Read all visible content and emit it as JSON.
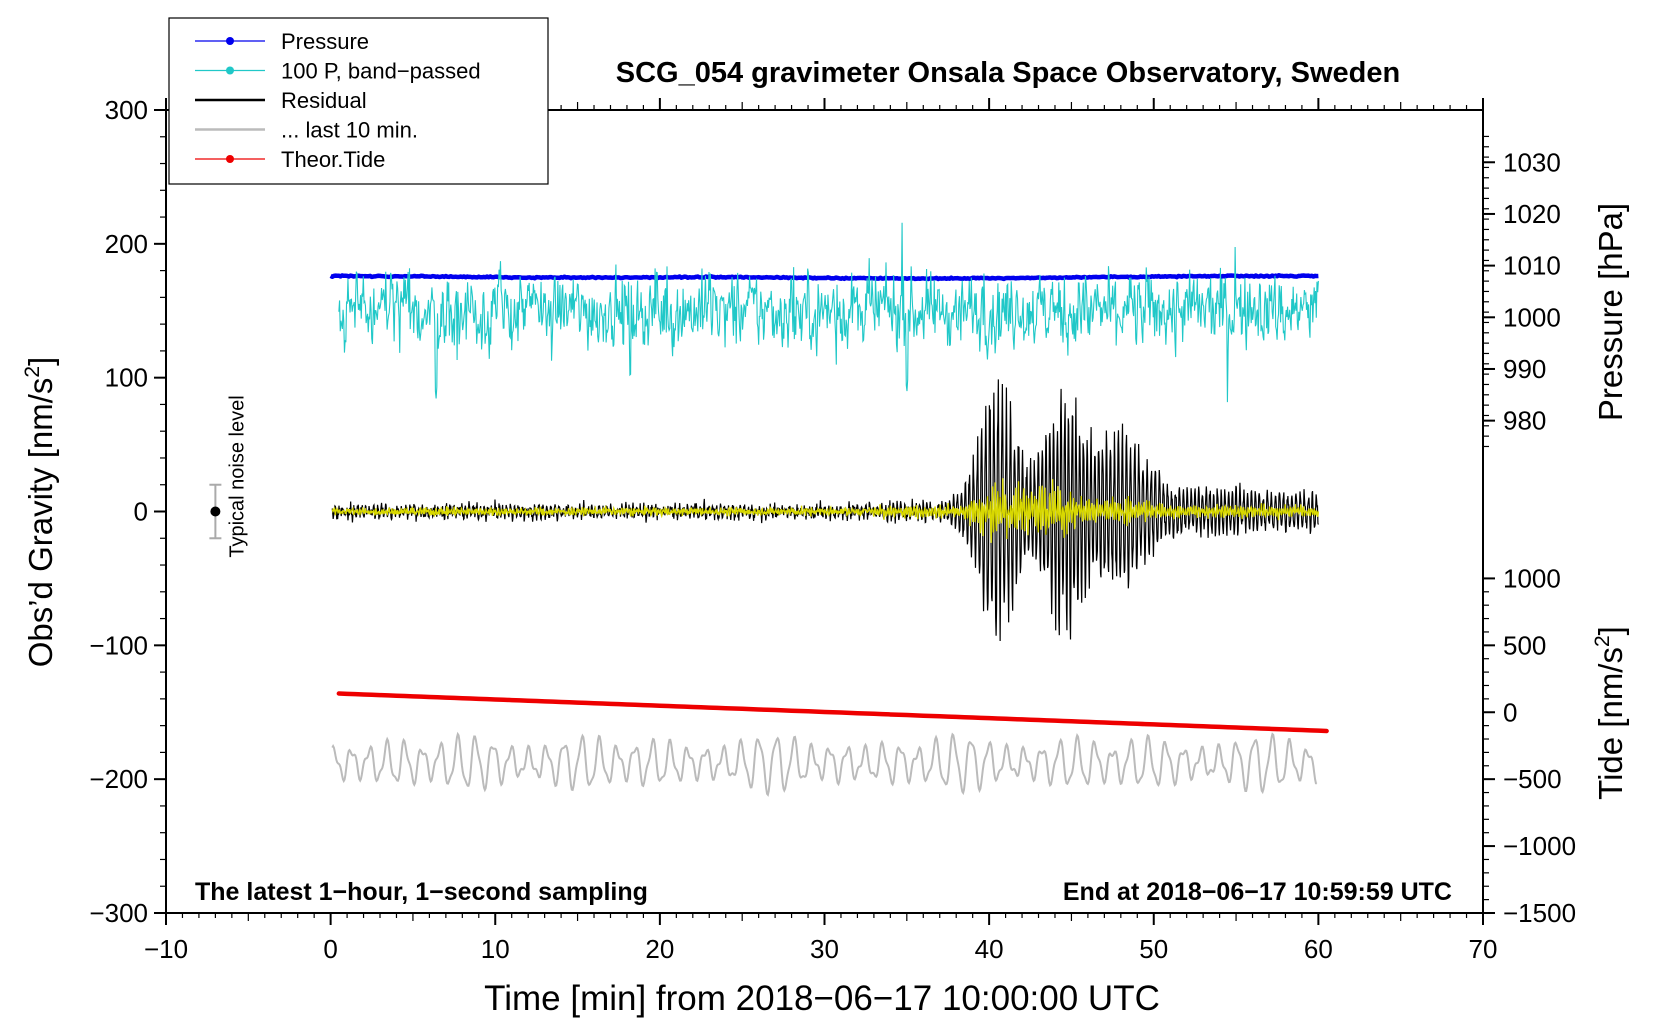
{
  "chart_data": {
    "type": "line",
    "title": "SCG_054 gravimeter Onsala Space Observatory, Sweden",
    "xlabel": "Time [min] from 2018−06−17 10:00:00 UTC",
    "ylabel_left": "Obs’d Gravity [nm/s",
    "ylabel_left_sup": "2",
    "ylabel_left_end": "]",
    "ylabel_pressure": "Pressure [hPa]",
    "ylabel_tide": "Tide [nm/s",
    "ylabel_tide_sup": "2",
    "ylabel_tide_end": "]",
    "xlim": [
      -10,
      70
    ],
    "ylim_left": [
      -300,
      300
    ],
    "x_ticks": [
      {
        "value": -10,
        "label": "−10"
      },
      {
        "value": 0,
        "label": "0"
      },
      {
        "value": 10,
        "label": "10"
      },
      {
        "value": 20,
        "label": "20"
      },
      {
        "value": 30,
        "label": "30"
      },
      {
        "value": 40,
        "label": "40"
      },
      {
        "value": 50,
        "label": "50"
      },
      {
        "value": 60,
        "label": "60"
      },
      {
        "value": 70,
        "label": "70"
      }
    ],
    "y_left_ticks": [
      {
        "value": 300,
        "label": "300"
      },
      {
        "value": 200,
        "label": "200"
      },
      {
        "value": 100,
        "label": "100"
      },
      {
        "value": 0,
        "label": "0"
      },
      {
        "value": -100,
        "label": "−100"
      },
      {
        "value": -200,
        "label": "−200"
      },
      {
        "value": -300,
        "label": "−300"
      }
    ],
    "pressure_axis": {
      "ref_gravity": [
        176,
        106.5
      ],
      "ref_pressure": [
        1008,
        990
      ],
      "ticks": [
        {
          "value": 1030,
          "label": "1030"
        },
        {
          "value": 1020,
          "label": "1020"
        },
        {
          "value": 1010,
          "label": "1010"
        },
        {
          "value": 1000,
          "label": "1000"
        },
        {
          "value": 990,
          "label": "990"
        },
        {
          "value": 980,
          "label": "980"
        }
      ]
    },
    "tide_axis": {
      "ref_gravity": [
        -150,
        -200
      ],
      "ref_tide": [
        0,
        -500
      ],
      "ticks": [
        {
          "value": 1000,
          "label": "1000"
        },
        {
          "value": 500,
          "label": "500"
        },
        {
          "value": 0,
          "label": "0"
        },
        {
          "value": -500,
          "label": "−500"
        },
        {
          "value": -1000,
          "label": "−1000"
        },
        {
          "value": -1500,
          "label": "−1500"
        }
      ]
    },
    "series": [
      {
        "name": "Pressure",
        "key": "pressure",
        "color": "#0000ee",
        "pressure_hPa": [
          1008.0,
          1007.9,
          1007.7,
          1007.7,
          1007.8,
          1007.6,
          1007.5,
          1007.6,
          1007.8,
          1008.0,
          1008.0
        ],
        "time_min": [
          0,
          6,
          12,
          18,
          24,
          30,
          36,
          42,
          48,
          54,
          60
        ]
      },
      {
        "name": "100 P, band−passed",
        "key": "bandpassed",
        "color": "#20c8c8",
        "baseline_gravity": 150,
        "amplitude_gravity": 17,
        "spikes": [
          {
            "time_min": 6.4,
            "gravity": 83
          },
          {
            "time_min": 18.2,
            "gravity": 98
          },
          {
            "time_min": 35.0,
            "gravity": 88
          }
        ]
      },
      {
        "name": "Residual",
        "key": "residual",
        "color": "#000000",
        "baseline_gravity": 0,
        "peak_events": [
          {
            "time_min": 40.5,
            "amplitude": 104
          },
          {
            "time_min": 44.5,
            "amplitude": 92
          },
          {
            "time_min": 48.0,
            "amplitude": 55
          }
        ]
      },
      {
        "name": "... last 10 min.",
        "key": "last10",
        "color": "#bbbbbb",
        "baseline_gravity": -188,
        "amplitude_gravity": 20
      },
      {
        "name": "Theor.Tide",
        "key": "tide",
        "color": "#ee0000",
        "time_min": [
          0.5,
          60.5
        ],
        "gravity": [
          -136,
          -164
        ]
      },
      {
        "name": "",
        "key": "highpass",
        "color": "#d8d800",
        "baseline_gravity": 0
      }
    ],
    "noise_bar": {
      "time_min": -7,
      "gravity": 0,
      "half_range": 20,
      "label": "Typical noise level"
    },
    "legend": {
      "placement": "top-left"
    },
    "footer_left": "The latest 1−hour, 1−second sampling",
    "footer_right": "End at 2018−06−17 10:59:59 UTC",
    "grid": false
  }
}
